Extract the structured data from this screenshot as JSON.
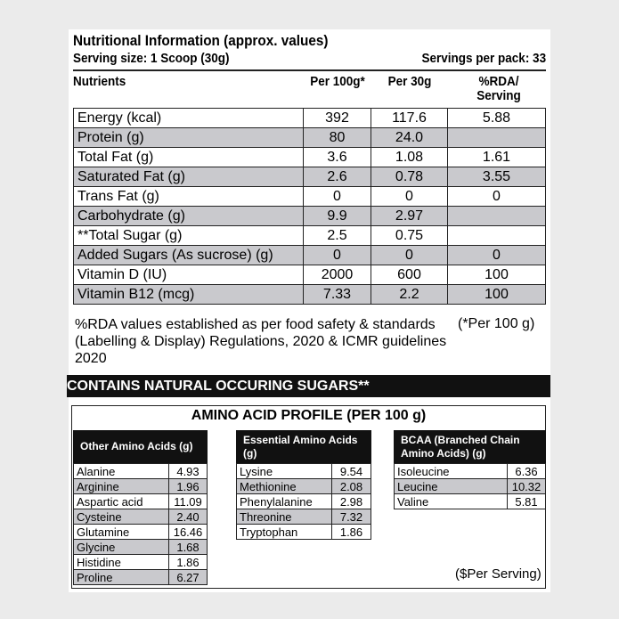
{
  "header": {
    "title": "Nutritional Information (approx. values)",
    "serving_size": "Serving size: 1 Scoop (30g)",
    "servings_per_pack": "Servings per pack: 33"
  },
  "columns": [
    "Nutrients",
    "Per 100g*",
    "Per 30g",
    "%RDA/ Serving"
  ],
  "rows": [
    {
      "name": "Energy (kcal)",
      "per100": "392",
      "per30": "117.6",
      "rda": "5.88",
      "shaded": false
    },
    {
      "name": "Protein (g)",
      "per100": "80",
      "per30": "24.0",
      "rda": "",
      "shaded": true
    },
    {
      "name": "Total Fat (g)",
      "per100": "3.6",
      "per30": "1.08",
      "rda": "1.61",
      "shaded": false
    },
    {
      "name": "Saturated Fat (g)",
      "per100": "2.6",
      "per30": "0.78",
      "rda": "3.55",
      "shaded": true
    },
    {
      "name": "Trans Fat (g)",
      "per100": "0",
      "per30": "0",
      "rda": "0",
      "shaded": false
    },
    {
      "name": "Carbohydrate (g)",
      "per100": "9.9",
      "per30": "2.97",
      "rda": "",
      "shaded": true
    },
    {
      "name": "**Total Sugar (g)",
      "per100": "2.5",
      "per30": "0.75",
      "rda": "",
      "shaded": false
    },
    {
      "name": "Added Sugars (As sucrose) (g)",
      "per100": "0",
      "per30": "0",
      "rda": "0",
      "shaded": true
    },
    {
      "name": "Vitamin D (IU)",
      "per100": "2000",
      "per30": "600",
      "rda": "100",
      "shaded": false
    },
    {
      "name": "Vitamin B12 (mcg)",
      "per100": "7.33",
      "per30": "2.2",
      "rda": "100",
      "shaded": true
    }
  ],
  "note": "%RDA values established as per food safety & standards (Labelling & Display) Regulations, 2020 & ICMR guidelines 2020",
  "note_per100": "(*Per 100 g)",
  "banner": "CONTAINS NATURAL OCCURING SUGARS**",
  "amino": {
    "title": "AMINO ACID PROFILE (PER 100 g)",
    "footnote": "($Per Serving)",
    "tables": [
      {
        "header": "Other Amino Acids (g)",
        "items": [
          [
            "Alanine",
            "4.93"
          ],
          [
            "Arginine",
            "1.96"
          ],
          [
            "Aspartic acid",
            "11.09"
          ],
          [
            "Cysteine",
            "2.40"
          ],
          [
            "Glutamine",
            "16.46"
          ],
          [
            "Glycine",
            "1.68"
          ],
          [
            "Histidine",
            "1.86"
          ],
          [
            "Proline",
            "6.27"
          ]
        ]
      },
      {
        "header": "Essential Amino Acids (g)",
        "items": [
          [
            "Lysine",
            "9.54"
          ],
          [
            "Methionine",
            "2.08"
          ],
          [
            "Phenylalanine",
            "2.98"
          ],
          [
            "Threonine",
            "7.32"
          ],
          [
            "Tryptophan",
            "1.86"
          ]
        ]
      },
      {
        "header": "BCAA (Branched Chain Amino Acids) (g)",
        "items": [
          [
            "Isoleucine",
            "6.36"
          ],
          [
            "Leucine",
            "10.32"
          ],
          [
            "Valine",
            "5.81"
          ]
        ]
      }
    ]
  }
}
